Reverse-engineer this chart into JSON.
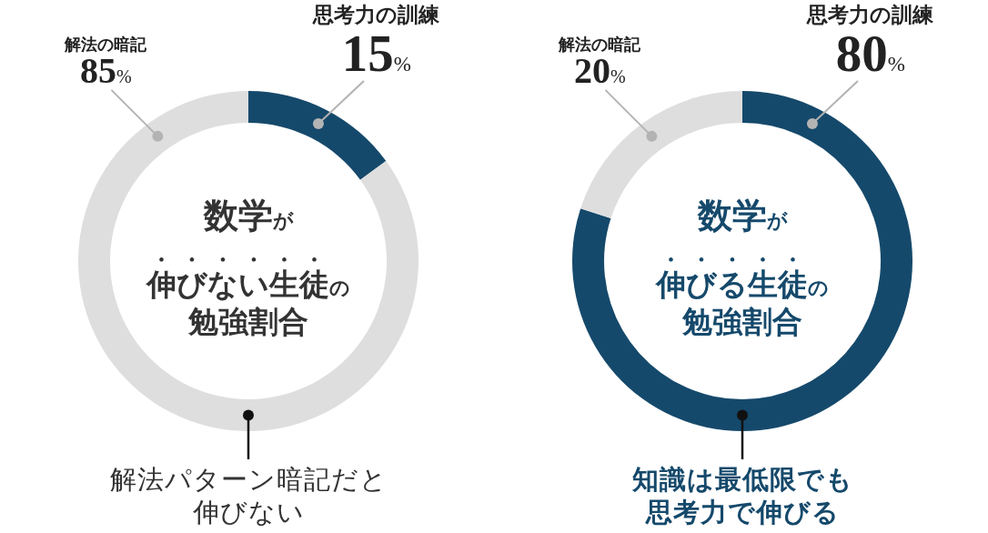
{
  "chart_data": [
    {
      "type": "donut",
      "title": "数学が伸びない生徒の勉強割合",
      "categories": [
        "思考力の訓練",
        "解法の暗記"
      ],
      "values": [
        15,
        85
      ],
      "value_labels": [
        "15%",
        "85%"
      ],
      "colors": [
        "#15496b",
        "#dedede"
      ],
      "annotations": [
        "解法パターン暗記だと伸びない"
      ]
    },
    {
      "type": "donut",
      "title": "数学が伸びる生徒の勉強割合",
      "categories": [
        "思考力の訓練",
        "解法の暗記"
      ],
      "values": [
        80,
        20
      ],
      "value_labels": [
        "80%",
        "20%"
      ],
      "colors": [
        "#15496b",
        "#dedede"
      ],
      "annotations": [
        "知識は最低限でも思考力で伸びる"
      ]
    }
  ]
}
